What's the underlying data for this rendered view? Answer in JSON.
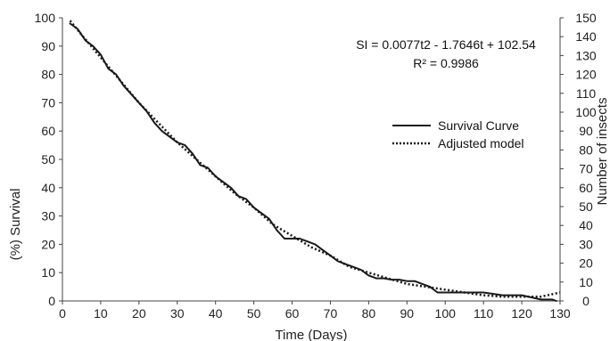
{
  "chart_data": {
    "type": "line",
    "xlabel": "Time (Days)",
    "ylabel": "(%) Survival",
    "y2label": "Number of insects",
    "xlim": [
      0,
      130
    ],
    "ylim": [
      0,
      100
    ],
    "y2lim": [
      0,
      150
    ],
    "x_ticks": [
      "0",
      "10",
      "20",
      "30",
      "40",
      "50",
      "60",
      "70",
      "80",
      "90",
      "100",
      "110",
      "120",
      "130"
    ],
    "y_ticks": [
      "0",
      "10",
      "20",
      "30",
      "40",
      "50",
      "60",
      "70",
      "80",
      "90",
      "100"
    ],
    "y2_ticks": [
      "0",
      "10",
      "20",
      "30",
      "40",
      "50",
      "60",
      "70",
      "80",
      "90",
      "100",
      "110",
      "120",
      "130",
      "140",
      "150"
    ],
    "grid": false,
    "legend_position": "right",
    "annotations": {
      "equation": "SI = 0.0077t2 - 1.7646t + 102.54",
      "r_squared": "R² = 0.9986"
    },
    "series": [
      {
        "name": "Survival Curve",
        "style": "solid",
        "color": "#1a1a1a",
        "x": [
          2,
          3,
          4,
          6,
          8,
          10,
          12,
          14,
          16,
          18,
          20,
          22,
          24,
          26,
          28,
          30,
          32,
          34,
          36,
          38,
          40,
          42,
          44,
          46,
          48,
          50,
          52,
          54,
          56,
          58,
          60,
          62,
          64,
          66,
          68,
          70,
          72,
          74,
          76,
          78,
          80,
          82,
          84,
          86,
          88,
          90,
          92,
          94,
          96,
          98,
          100,
          105,
          110,
          115,
          120,
          125,
          128,
          129
        ],
        "y": [
          98,
          97,
          96,
          92,
          90,
          87,
          82,
          80,
          76,
          73,
          70,
          67,
          63,
          60,
          58,
          56,
          55,
          52,
          48,
          47,
          44,
          42,
          40,
          37,
          36,
          33,
          31,
          29,
          25,
          22,
          22,
          22,
          21,
          20,
          18,
          16,
          14,
          13,
          12,
          11,
          9,
          8,
          8,
          7.5,
          7.5,
          7,
          7,
          6,
          5,
          3,
          3,
          3,
          3,
          2,
          2,
          0.5,
          0.5,
          0
        ]
      },
      {
        "name": "Adjusted model",
        "style": "dotted",
        "color": "#1a1a1a",
        "x": [
          2,
          5,
          10,
          15,
          20,
          25,
          30,
          35,
          40,
          45,
          50,
          55,
          60,
          65,
          70,
          75,
          80,
          85,
          90,
          95,
          100,
          105,
          110,
          115,
          120,
          125,
          130
        ],
        "y": [
          99,
          94,
          86,
          78,
          70,
          63,
          56,
          50,
          44,
          38,
          33,
          27,
          23,
          19,
          16,
          12,
          10,
          8,
          6,
          5,
          4,
          3,
          2,
          1.5,
          1.5,
          1.5,
          3
        ]
      }
    ]
  }
}
